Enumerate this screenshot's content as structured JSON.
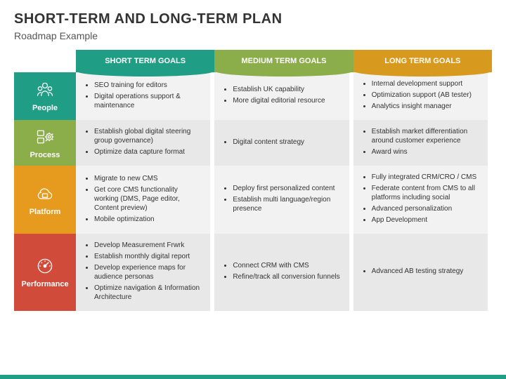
{
  "title": "SHORT-TERM AND LONG-TERM PLAN",
  "subtitle": "Roadmap Example",
  "colors": {
    "col1": "#1f9e85",
    "col2": "#8bad4a",
    "col3": "#d89a1e",
    "row0": "#1f9e85",
    "row1": "#8bad4a",
    "row2": "#e69b1f",
    "row3": "#d04b3a",
    "bottom": "#1f9e85"
  },
  "columns": [
    "SHORT TERM GOALS",
    "MEDIUM TERM GOALS",
    "LONG TERM GOALS"
  ],
  "rows": [
    {
      "label": "People",
      "icon": "people",
      "cells": [
        [
          "SEO training for editors",
          "Digital operations support & maintenance"
        ],
        [
          "Establish UK capability",
          "More digital editorial resource"
        ],
        [
          "Internal development support",
          "Optimization support (AB tester)",
          "Analytics insight manager"
        ]
      ]
    },
    {
      "label": "Process",
      "icon": "process",
      "cells": [
        [
          "Establish global digital steering group governance)",
          "Optimize data capture format"
        ],
        [
          "Digital content strategy"
        ],
        [
          "Establish market differentiation around customer experience",
          "Award wins"
        ]
      ]
    },
    {
      "label": "Platform",
      "icon": "platform",
      "cells": [
        [
          "Migrate to new CMS",
          "Get core CMS functionality working (DMS, Page editor, Content preview)",
          "Mobile optimization"
        ],
        [
          "Deploy first personalized content",
          "Establish multi language/region presence"
        ],
        [
          "Fully integrated CRM/CRO / CMS",
          "Federate content from CMS to all platforms including social",
          "Advanced personalization",
          "App Development"
        ]
      ]
    },
    {
      "label": "Performance",
      "icon": "gauge",
      "cells": [
        [
          "Develop Measurement Frwrk",
          "Establish monthly digital report",
          "Develop experience maps for audience personas",
          "Optimize navigation & Information Architecture"
        ],
        [
          "Connect CRM with CMS",
          "Refine/track all conversion funnels"
        ],
        [
          "Advanced AB testing strategy"
        ]
      ]
    }
  ]
}
